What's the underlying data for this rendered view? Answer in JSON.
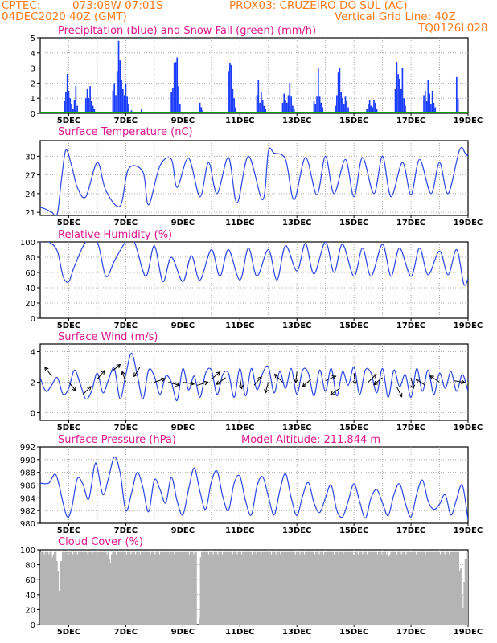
{
  "header": {
    "line1_left": "CPTEC:",
    "line1_coords": "073:08W-07:01S",
    "line1_station": "PROX03: CRUZEIRO DO SUL (AC)",
    "line2_left": "04DEC2020 40Z (GMT)",
    "line2_right": "Vertical Grid Line: 40Z",
    "line3_right": "TQ0126L028"
  },
  "colors": {
    "header_text": "#ff7a1a",
    "panel_title": "#e0148c",
    "precip": "#1a3cff",
    "snow": "#00a000",
    "line": "#2a46e6",
    "cloud": "#b4b4b4",
    "grid": "#999999",
    "wind_arrow": "#000000"
  },
  "x_ticks": [
    "5DEC",
    "7DEC",
    "9DEC",
    "11DEC",
    "13DEC",
    "15DEC",
    "17DEC",
    "19DEC"
  ],
  "chart_data": [
    {
      "id": "precip",
      "type": "bar",
      "title": "Precipitation (blue) and Snow Fall (green) (mm/h)",
      "xlabel": "",
      "ylabel": "",
      "ylim": [
        0,
        5
      ],
      "yticks": [
        "0",
        "1",
        "2",
        "3",
        "4",
        "5"
      ],
      "grid": true,
      "series": [
        {
          "name": "Precipitation",
          "color": "#1a3cff",
          "day": [
            4.85,
            4.9,
            4.95,
            5.0,
            5.05,
            5.1,
            5.15,
            5.2,
            5.25,
            5.3,
            5.6,
            5.65,
            5.7,
            5.75,
            5.8,
            5.85,
            5.9,
            6.55,
            6.6,
            6.65,
            6.7,
            6.75,
            6.8,
            6.85,
            6.9,
            6.95,
            7.0,
            7.05,
            7.1,
            7.2,
            7.55,
            7.6,
            8.6,
            8.65,
            8.7,
            8.75,
            8.8,
            8.85,
            8.9,
            9.6,
            9.65,
            9.7,
            10.6,
            10.65,
            10.7,
            10.75,
            10.8,
            10.85,
            11.6,
            11.65,
            11.7,
            11.75,
            11.8,
            11.85,
            11.9,
            12.5,
            12.55,
            12.6,
            12.65,
            12.7,
            12.75,
            12.8,
            12.85,
            12.9,
            13.6,
            13.65,
            13.7,
            13.75,
            13.8,
            13.85,
            13.9,
            14.35,
            14.4,
            14.45,
            14.5,
            14.55,
            14.6,
            14.65,
            14.7,
            14.75,
            14.8,
            15.45,
            15.5,
            15.55,
            15.6,
            15.65,
            15.7,
            15.75,
            15.8,
            16.45,
            16.5,
            16.55,
            16.6,
            16.65,
            16.7,
            16.75,
            16.8,
            17.45,
            17.5,
            17.55,
            17.6,
            17.65,
            17.7,
            17.75,
            17.8,
            17.85,
            18.6,
            18.65
          ],
          "values": [
            0.8,
            1.4,
            2.6,
            1.5,
            1.0,
            0.6,
            0.3,
            0.9,
            1.8,
            0.5,
            1.0,
            1.6,
            1.0,
            1.8,
            0.8,
            0.5,
            0.3,
            1.5,
            2.0,
            1.2,
            2.8,
            4.8,
            3.5,
            2.2,
            1.6,
            1.2,
            2.0,
            1.1,
            0.6,
            0.2,
            0.3,
            0.1,
            1.4,
            1.7,
            3.3,
            3.4,
            3.7,
            1.8,
            0.6,
            0.7,
            0.4,
            0.2,
            2.8,
            3.3,
            3.2,
            1.6,
            1.0,
            0.4,
            1.2,
            2.2,
            0.7,
            1.4,
            0.9,
            0.5,
            0.3,
            0.7,
            1.3,
            0.9,
            0.7,
            1.2,
            2.0,
            1.1,
            0.5,
            0.3,
            0.8,
            0.6,
            1.1,
            3.0,
            1.1,
            0.7,
            0.4,
            0.5,
            1.2,
            2.7,
            3.0,
            1.4,
            1.0,
            0.6,
            1.1,
            0.8,
            0.4,
            0.3,
            0.6,
            0.9,
            0.5,
            0.4,
            0.9,
            0.7,
            0.3,
            1.6,
            3.4,
            2.6,
            2.3,
            1.6,
            3.0,
            1.0,
            0.5,
            1.2,
            1.5,
            0.8,
            2.2,
            1.3,
            0.6,
            1.5,
            0.7,
            0.4,
            2.4,
            1.0
          ]
        },
        {
          "name": "Snow Fall",
          "color": "#00a000",
          "day": [
            4.0,
            19.0
          ],
          "values": [
            0,
            0
          ]
        }
      ]
    },
    {
      "id": "temp",
      "type": "line",
      "title": "Surface Temperature (nC)",
      "xlabel": "",
      "ylabel": "",
      "ylim": [
        20.5,
        32.5
      ],
      "ytick_values": [
        21,
        24,
        27,
        30
      ],
      "grid": true,
      "series": [
        {
          "name": "",
          "day": [
            4.0,
            4.2,
            4.4,
            4.6,
            4.75,
            4.9,
            5.1,
            5.3,
            5.6,
            6.0,
            6.3,
            6.8,
            7.1,
            7.6,
            7.8,
            8.2,
            8.6,
            8.8,
            9.2,
            9.6,
            9.9,
            10.2,
            10.6,
            10.9,
            11.3,
            11.8,
            12.0,
            12.2,
            12.6,
            12.9,
            13.3,
            13.7,
            14.0,
            14.3,
            14.7,
            15.0,
            15.3,
            15.7,
            16.0,
            16.3,
            16.7,
            17.0,
            17.3,
            17.7,
            18.0,
            18.3,
            18.7,
            18.9,
            19.0
          ],
          "values": [
            21.8,
            21.5,
            21.0,
            20.8,
            26.5,
            31.0,
            28.5,
            25.0,
            23.5,
            29.0,
            24.5,
            22.0,
            28.0,
            27.5,
            22.2,
            28.5,
            29.5,
            25.0,
            29.7,
            23.5,
            29.0,
            24.0,
            29.8,
            22.5,
            30.0,
            23.0,
            30.8,
            30.5,
            29.5,
            23.0,
            29.8,
            23.8,
            30.0,
            24.0,
            29.5,
            23.5,
            29.8,
            24.0,
            30.0,
            23.5,
            29.0,
            23.8,
            29.5,
            24.0,
            29.0,
            24.0,
            31.0,
            30.5,
            30.0
          ]
        }
      ]
    },
    {
      "id": "rh",
      "type": "line",
      "title": "Relative Humidity (%)",
      "xlabel": "",
      "ylabel": "",
      "ylim": [
        0,
        100
      ],
      "ytick_values": [
        0,
        20,
        40,
        60,
        80,
        100
      ],
      "grid": true,
      "series": [
        {
          "name": "",
          "day": [
            4.0,
            4.3,
            4.6,
            4.8,
            5.0,
            5.2,
            5.6,
            6.0,
            6.3,
            6.6,
            7.0,
            7.3,
            7.7,
            8.0,
            8.3,
            8.6,
            9.0,
            9.3,
            9.6,
            10.0,
            10.3,
            10.6,
            11.0,
            11.3,
            11.6,
            12.0,
            12.3,
            12.6,
            13.0,
            13.3,
            13.6,
            14.0,
            14.3,
            14.6,
            15.0,
            15.3,
            15.6,
            16.0,
            16.3,
            16.6,
            17.0,
            17.3,
            17.6,
            18.0,
            18.3,
            18.6,
            18.85,
            19.0
          ],
          "values": [
            100,
            100,
            88,
            55,
            48,
            68,
            100,
            100,
            55,
            75,
            100,
            100,
            55,
            95,
            48,
            80,
            48,
            82,
            50,
            90,
            55,
            90,
            50,
            92,
            55,
            90,
            50,
            95,
            62,
            98,
            58,
            100,
            60,
            97,
            55,
            92,
            55,
            97,
            55,
            92,
            55,
            92,
            57,
            88,
            57,
            90,
            45,
            52
          ]
        }
      ]
    },
    {
      "id": "wind",
      "type": "line",
      "title": "Surface Wind (m/s)",
      "xlabel": "",
      "ylabel": "",
      "ylim": [
        -0.5,
        4.5
      ],
      "ytick_values": [
        0,
        2,
        4
      ],
      "grid": true,
      "series": [
        {
          "name": "",
          "day": [
            4.0,
            4.2,
            4.4,
            4.6,
            4.8,
            5.0,
            5.2,
            5.4,
            5.6,
            5.8,
            6.0,
            6.2,
            6.4,
            6.6,
            6.8,
            7.0,
            7.2,
            7.4,
            7.6,
            7.8,
            8.0,
            8.2,
            8.4,
            8.6,
            8.8,
            9.0,
            9.2,
            9.4,
            9.6,
            9.8,
            10.0,
            10.2,
            10.4,
            10.6,
            10.8,
            11.0,
            11.2,
            11.4,
            11.6,
            11.8,
            12.0,
            12.2,
            12.4,
            12.6,
            12.8,
            13.0,
            13.2,
            13.4,
            13.6,
            13.8,
            14.0,
            14.2,
            14.4,
            14.6,
            14.8,
            15.0,
            15.2,
            15.4,
            15.6,
            15.8,
            16.0,
            16.2,
            16.4,
            16.6,
            16.8,
            17.0,
            17.2,
            17.4,
            17.6,
            17.8,
            18.0,
            18.2,
            18.4,
            18.6,
            18.8,
            19.0
          ],
          "values": [
            2.3,
            1.4,
            1.8,
            2.3,
            1.2,
            1.6,
            2.8,
            1.9,
            0.9,
            1.4,
            2.6,
            1.3,
            2.2,
            2.9,
            0.9,
            2.5,
            3.9,
            2.5,
            0.9,
            2.8,
            2.4,
            1.2,
            2.4,
            2.0,
            0.8,
            2.9,
            1.5,
            2.4,
            1.0,
            2.6,
            2.8,
            1.2,
            2.5,
            2.6,
            1.0,
            2.9,
            1.1,
            2.9,
            1.5,
            2.6,
            3.0,
            1.3,
            2.7,
            1.6,
            2.9,
            1.2,
            2.8,
            2.6,
            1.1,
            2.8,
            1.4,
            2.9,
            1.1,
            2.7,
            1.8,
            3.0,
            1.2,
            2.8,
            2.6,
            1.3,
            2.9,
            1.0,
            2.8,
            1.7,
            2.5,
            1.0,
            2.9,
            1.4,
            2.8,
            1.2,
            2.6,
            1.6,
            2.7,
            1.4,
            2.5,
            1.4
          ]
        }
      ],
      "arrows": {
        "day": [
          4.4,
          5.0,
          5.5,
          6.0,
          6.5,
          7.0,
          7.5,
          8.0,
          8.5,
          9.0,
          9.5,
          10.0,
          10.5,
          11.0,
          11.5,
          12.0,
          12.5,
          13.0,
          13.5,
          14.0,
          14.5,
          15.0,
          15.5,
          16.0,
          16.5,
          17.0,
          17.5,
          18.0,
          18.5
        ],
        "speed": [
          2.4,
          2.0,
          1.2,
          2.2,
          2.7,
          2.0,
          3.0,
          2.0,
          2.0,
          2.0,
          1.8,
          2.2,
          2.3,
          2.3,
          1.8,
          2.0,
          2.0,
          2.7,
          2.2,
          2.1,
          1.6,
          2.6,
          2.0,
          2.3,
          1.7,
          2.3,
          1.8,
          2.0,
          2.1
        ],
        "u": [
          -0.6,
          0.5,
          0.5,
          0.5,
          0.5,
          -0.2,
          -0.5,
          0.6,
          0.7,
          0.6,
          0.7,
          0.6,
          -0.8,
          0.1,
          0.6,
          -0.2,
          -0.6,
          -0.1,
          -0.7,
          0.7,
          -0.7,
          0.1,
          0.5,
          -0.6,
          0.4,
          0.2,
          -0.6,
          -0.3,
          0.6
        ],
        "v": [
          0.8,
          -0.6,
          0.5,
          0.6,
          0.4,
          0.6,
          -0.8,
          0.2,
          -0.2,
          -0.1,
          0.2,
          0.5,
          -0.6,
          -0.6,
          0.7,
          -0.7,
          0.6,
          -0.9,
          -0.6,
          0.3,
          -0.5,
          -0.9,
          0.5,
          -0.5,
          -0.8,
          -0.9,
          0.4,
          0.2,
          -0.1
        ]
      }
    },
    {
      "id": "press",
      "type": "line",
      "title": "Surface Pressure (hPa)",
      "annotation": "Model Altitude: 211.844 m",
      "xlabel": "",
      "ylabel": "",
      "ylim": [
        980,
        992
      ],
      "ytick_values": [
        980,
        982,
        984,
        986,
        988,
        990,
        992
      ],
      "grid": true,
      "series": [
        {
          "name": "",
          "day": [
            4.0,
            4.3,
            4.55,
            4.8,
            4.95,
            5.1,
            5.3,
            5.5,
            5.7,
            5.9,
            6.0,
            6.2,
            6.4,
            6.6,
            6.8,
            7.0,
            7.2,
            7.4,
            7.6,
            7.8,
            8.0,
            8.2,
            8.4,
            8.6,
            8.8,
            9.0,
            9.2,
            9.4,
            9.6,
            9.8,
            10.0,
            10.2,
            10.4,
            10.6,
            10.8,
            11.0,
            11.2,
            11.4,
            11.6,
            11.8,
            12.0,
            12.2,
            12.4,
            12.6,
            12.8,
            13.0,
            13.2,
            13.4,
            13.6,
            13.8,
            14.0,
            14.2,
            14.4,
            14.6,
            14.8,
            15.0,
            15.2,
            15.4,
            15.6,
            15.8,
            16.0,
            16.2,
            16.4,
            16.6,
            16.8,
            17.0,
            17.2,
            17.4,
            17.6,
            17.8,
            18.0,
            18.2,
            18.4,
            18.6,
            18.8,
            19.0
          ],
          "values": [
            986.3,
            986.3,
            987.6,
            983.2,
            981.0,
            982.3,
            987.0,
            986.1,
            983.8,
            989.0,
            988.8,
            984.5,
            987.2,
            990.4,
            988.0,
            982.0,
            984.7,
            988.0,
            985.6,
            981.8,
            986.8,
            985.3,
            983.2,
            987.2,
            983.5,
            981.3,
            985.3,
            988.7,
            985.0,
            982.2,
            986.5,
            988.2,
            984.2,
            982.0,
            986.3,
            987.4,
            983.5,
            981.3,
            985.8,
            987.3,
            984.2,
            981.3,
            985.1,
            987.8,
            984.0,
            981.2,
            984.3,
            986.4,
            983.2,
            981.7,
            984.0,
            986.0,
            982.0,
            981.0,
            983.5,
            986.2,
            983.4,
            980.8,
            984.0,
            985.3,
            983.2,
            981.2,
            984.5,
            986.2,
            983.2,
            981.0,
            984.6,
            986.8,
            983.5,
            982.2,
            983.0,
            984.5,
            981.3,
            983.8,
            986.0,
            980.5
          ]
        }
      ]
    },
    {
      "id": "cloud",
      "type": "bar",
      "title": "Cloud Cover (%)",
      "xlabel": "",
      "ylabel": "",
      "ylim": [
        0,
        100
      ],
      "ytick_values": [
        0,
        20,
        40,
        60,
        80,
        100
      ],
      "grid": true,
      "series": [
        {
          "name": "",
          "color": "#b4b4b4",
          "fill_default": 97,
          "day": [
            4.4,
            4.55,
            4.6,
            4.65,
            4.7,
            6.4,
            6.45,
            9.5,
            9.55,
            9.6,
            15.0,
            16.2,
            16.25,
            18.7,
            18.75,
            18.8,
            18.85,
            18.9
          ],
          "values": [
            90,
            85,
            72,
            45,
            85,
            88,
            82,
            0,
            8,
            90,
            93,
            91,
            94,
            75,
            40,
            22,
            60,
            88
          ]
        }
      ]
    }
  ]
}
